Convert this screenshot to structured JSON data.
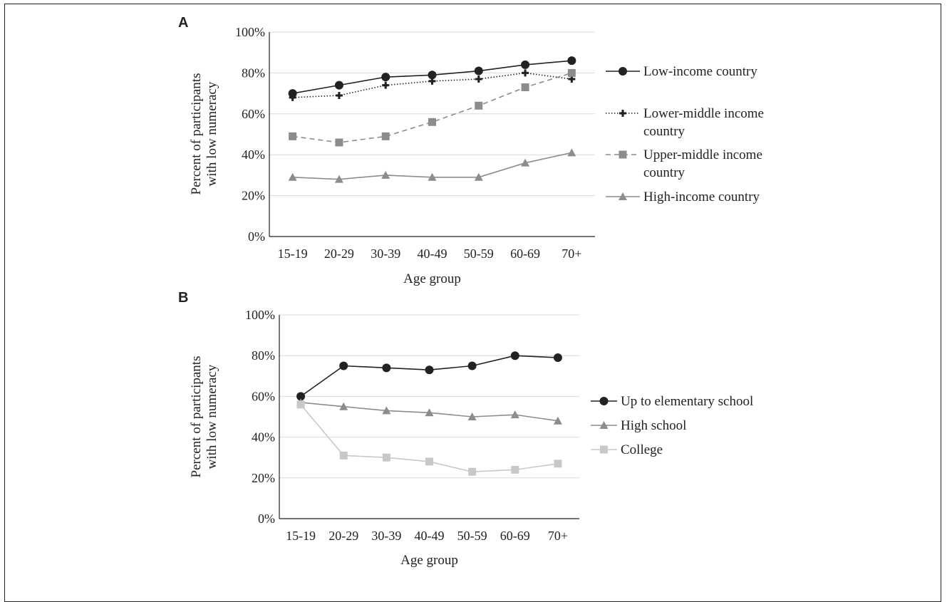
{
  "chart_data": [
    {
      "type": "line",
      "panel_label": "A",
      "categories": [
        "15-19",
        "20-29",
        "30-39",
        "40-49",
        "50-59",
        "60-69",
        "70+"
      ],
      "ylim": [
        0,
        100
      ],
      "yticks": [
        "0%",
        "20%",
        "40%",
        "60%",
        "80%",
        "100%"
      ],
      "xlabel": "Age group",
      "ylabel": [
        "Percent of participants",
        "with low numeracy"
      ],
      "grid": true,
      "legend_position": "right",
      "series": [
        {
          "name": [
            "Low-income country"
          ],
          "values": [
            70,
            74,
            78,
            79,
            81,
            84,
            86
          ],
          "color": "#222222",
          "marker": "circle",
          "dash": "solid"
        },
        {
          "name": [
            "Lower-middle income",
            "country"
          ],
          "values": [
            68,
            69,
            74,
            76,
            77,
            80,
            77
          ],
          "color": "#222222",
          "marker": "plus",
          "dash": "dotted"
        },
        {
          "name": [
            "Upper-middle income",
            "country"
          ],
          "values": [
            49,
            46,
            49,
            56,
            64,
            73,
            80
          ],
          "color": "#8c8c8c",
          "marker": "square",
          "dash": "dashed"
        },
        {
          "name": [
            "High-income country"
          ],
          "values": [
            29,
            28,
            30,
            29,
            29,
            36,
            41
          ],
          "color": "#8c8c8c",
          "marker": "triangle",
          "dash": "solid"
        }
      ]
    },
    {
      "type": "line",
      "panel_label": "B",
      "categories": [
        "15-19",
        "20-29",
        "30-39",
        "40-49",
        "50-59",
        "60-69",
        "70+"
      ],
      "ylim": [
        0,
        100
      ],
      "yticks": [
        "0%",
        "20%",
        "40%",
        "60%",
        "80%",
        "100%"
      ],
      "xlabel": "Age group",
      "ylabel": [
        "Percent of participants",
        "with low numeracy"
      ],
      "grid": true,
      "legend_position": "right",
      "series": [
        {
          "name": [
            "Up to elementary school"
          ],
          "values": [
            60,
            75,
            74,
            73,
            75,
            80,
            79
          ],
          "color": "#222222",
          "marker": "circle",
          "dash": "solid"
        },
        {
          "name": [
            "High school"
          ],
          "values": [
            57,
            55,
            53,
            52,
            50,
            51,
            48
          ],
          "color": "#8c8c8c",
          "marker": "triangle",
          "dash": "solid"
        },
        {
          "name": [
            "College"
          ],
          "values": [
            56,
            31,
            30,
            28,
            23,
            24,
            27
          ],
          "color": "#c8c8c8",
          "marker": "square",
          "dash": "solid"
        }
      ]
    }
  ]
}
